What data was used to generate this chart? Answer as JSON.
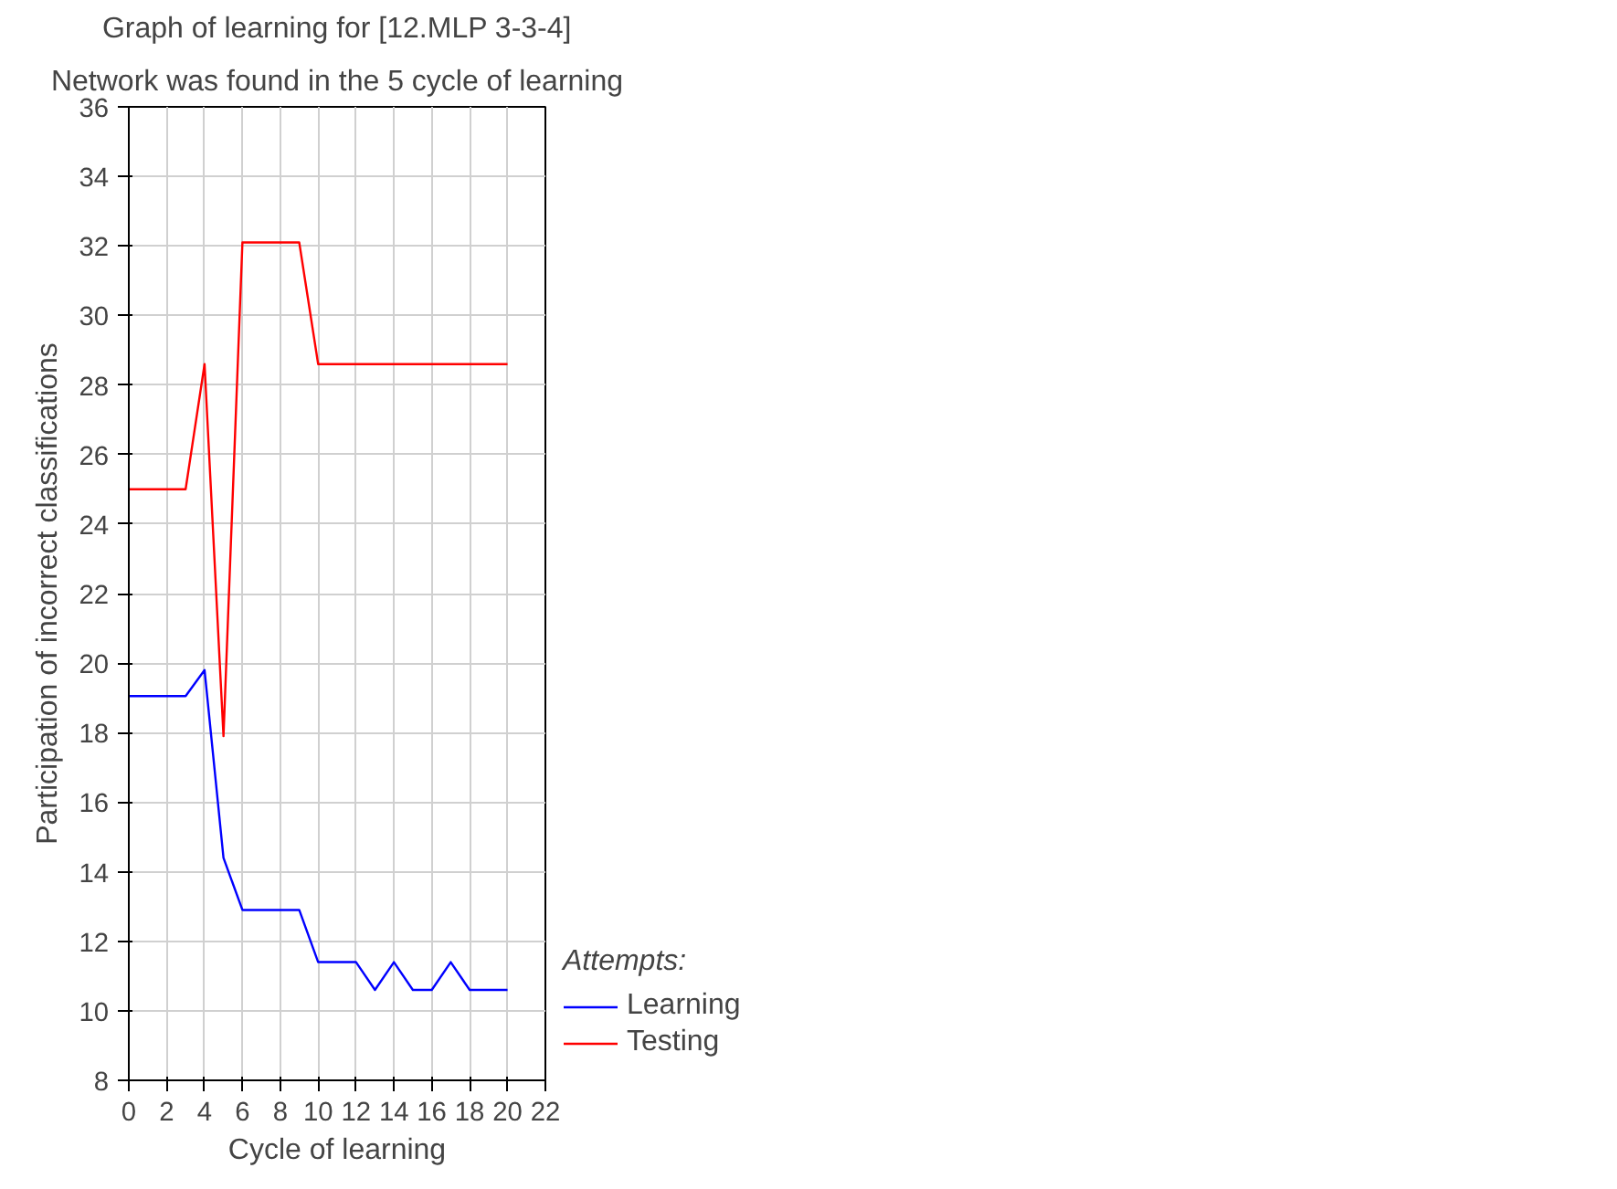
{
  "chart_data": {
    "type": "line",
    "title": "Graph of learning for [12.MLP 3-3-4]",
    "subtitle": "Network was found in the 5 cycle of learning",
    "xlabel": "Cycle of learning",
    "ylabel": "Participation of incorrect classifications",
    "legend_title": "Attempts:",
    "x": [
      0,
      1,
      2,
      3,
      4,
      5,
      6,
      7,
      8,
      9,
      10,
      11,
      12,
      13,
      14,
      15,
      16,
      17,
      18,
      19,
      20
    ],
    "series": [
      {
        "name": "Learning",
        "color": "#0000ff",
        "values": [
          19.05,
          19.05,
          19.05,
          19.05,
          19.8,
          14.4,
          12.9,
          12.9,
          12.9,
          12.9,
          11.4,
          11.4,
          11.4,
          10.6,
          11.4,
          10.6,
          10.6,
          11.4,
          10.6,
          10.6,
          10.6
        ]
      },
      {
        "name": "Testing",
        "color": "#ff0000",
        "values": [
          25,
          25,
          25,
          25,
          28.6,
          17.9,
          32.1,
          32.1,
          32.1,
          32.1,
          28.6,
          28.6,
          28.6,
          28.6,
          28.6,
          28.6,
          28.6,
          28.6,
          28.6,
          28.6,
          28.6
        ]
      }
    ],
    "xlim": [
      0,
      22
    ],
    "xticks": [
      0,
      2,
      4,
      6,
      8,
      10,
      12,
      14,
      16,
      18,
      20,
      22
    ],
    "ylim": [
      8,
      36
    ],
    "yticks": [
      8,
      10,
      12,
      14,
      16,
      18,
      20,
      22,
      24,
      26,
      28,
      30,
      32,
      34,
      36
    ],
    "grid": true,
    "legend": "bottom right",
    "marker": "none",
    "line_style": "solid"
  }
}
